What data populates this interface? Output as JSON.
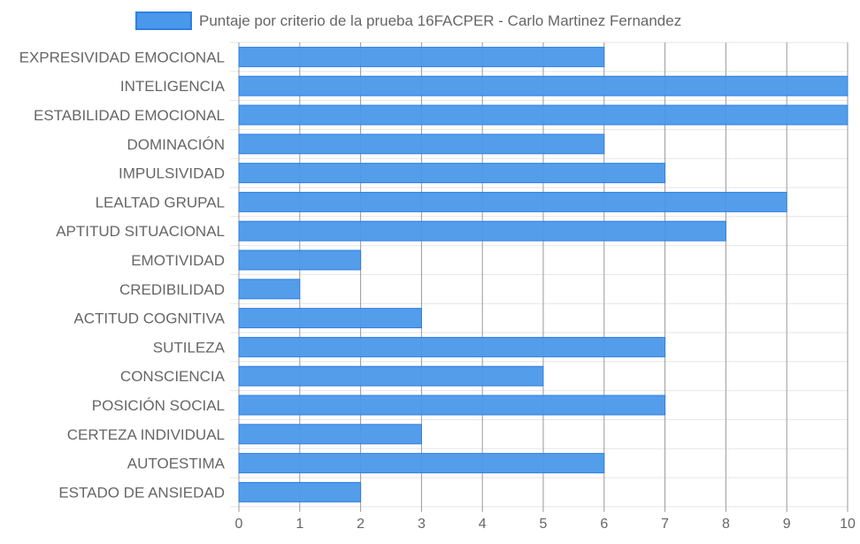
{
  "chart_data": {
    "type": "bar",
    "orientation": "horizontal",
    "title": "",
    "xlabel": "",
    "ylabel": "",
    "legend_position": "top-center",
    "grid": true,
    "xlim": [
      0,
      10
    ],
    "x_ticks": [
      "0",
      "1",
      "2",
      "3",
      "4",
      "5",
      "6",
      "7",
      "8",
      "9",
      "10"
    ],
    "categories": [
      "EXPRESIVIDAD EMOCIONAL",
      "INTELIGENCIA",
      "ESTABILIDAD EMOCIONAL",
      "DOMINACIÓN",
      "IMPULSIVIDAD",
      "LEALTAD GRUPAL",
      "APTITUD SITUACIONAL",
      "EMOTIVIDAD",
      "CREDIBILIDAD",
      "ACTITUD COGNITIVA",
      "SUTILEZA",
      "CONSCIENCIA",
      "POSICIÓN SOCIAL",
      "CERTEZA INDIVIDUAL",
      "AUTOESTIMA",
      "ESTADO DE ANSIEDAD"
    ],
    "series": [
      {
        "name": "Puntaje por criterio de la prueba 16FACPER - Carlo Martinez Fernandez",
        "values": [
          6,
          10,
          10,
          6,
          7,
          9,
          8,
          2,
          1,
          3,
          7,
          5,
          7,
          3,
          6,
          2
        ]
      }
    ],
    "colors": {
      "bar_fill": "#4a98ea",
      "bar_stroke": "#2f80e0",
      "grid_major": "#999999",
      "grid_minor": "#e6e6e6",
      "text": "#666666"
    }
  }
}
